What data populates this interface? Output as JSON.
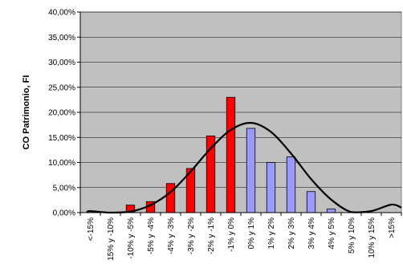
{
  "chart_data": {
    "type": "bar",
    "ylabel": "CO Patrimonio, FI",
    "xlabel": "",
    "title": "",
    "ylim": [
      0,
      40
    ],
    "yticks": [
      "0,00%",
      "5,00%",
      "10,00%",
      "15,00%",
      "20,00%",
      "25,00%",
      "30,00%",
      "35,00%",
      "40,00%"
    ],
    "ytick_values": [
      0,
      5,
      10,
      15,
      20,
      25,
      30,
      35,
      40
    ],
    "grid": true,
    "legend": "none",
    "categories": [
      "<-15%",
      "15% y -10%",
      "-10% y -5%",
      "-5% y -4%",
      "-4% y -3%",
      "-3% y -2%",
      "-2% y -1%",
      "-1% y 0%",
      "0% y 1%",
      "1% y 2%",
      "2% y 3%",
      "3% y 4%",
      "4% y 5%",
      "5% y 10%",
      "10% y 15%",
      ">15%"
    ],
    "values": [
      0,
      0,
      1.5,
      2.2,
      5.8,
      8.8,
      15.3,
      23.0,
      16.8,
      10.0,
      11.1,
      4.2,
      0.7,
      0,
      0,
      0
    ],
    "bar_colors": [
      "#ff0000",
      "#ff0000",
      "#ff0000",
      "#ff0000",
      "#ff0000",
      "#ff0000",
      "#ff0000",
      "#ff0000",
      "#9999ff",
      "#9999ff",
      "#9999ff",
      "#9999ff",
      "#9999ff",
      "#9999ff",
      "#9999ff",
      "#9999ff"
    ],
    "curve": {
      "color": "#000000",
      "values": [
        0.3,
        0,
        0.2,
        1.5,
        4.1,
        8.2,
        12.8,
        16.5,
        17.9,
        16.1,
        11.8,
        6.7,
        2.6,
        0.1,
        0.3,
        1.6
      ]
    },
    "plot_background": "#c0c0c0",
    "gridline_color": "#000000"
  }
}
